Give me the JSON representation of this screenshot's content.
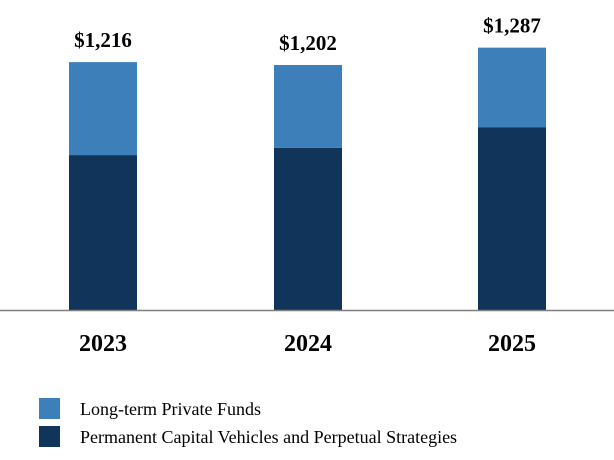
{
  "colors": {
    "top": "#3d7fb8",
    "bottom": "#11355a",
    "axis": "#7f7f7f"
  },
  "chart_data": {
    "type": "bar",
    "stacked": true,
    "categories": [
      "2023",
      "2024",
      "2025"
    ],
    "series": [
      {
        "name": "Permanent Capital Vehicles and Perpetual Strategies",
        "values": [
          760,
          796,
          897
        ]
      },
      {
        "name": "Long-term Private Funds",
        "values": [
          456,
          406,
          390
        ]
      }
    ],
    "totals": [
      "$1,216",
      "$1,202",
      "$1,287"
    ],
    "ylim": [
      0,
      1300
    ],
    "legend_position": "bottom-left"
  }
}
